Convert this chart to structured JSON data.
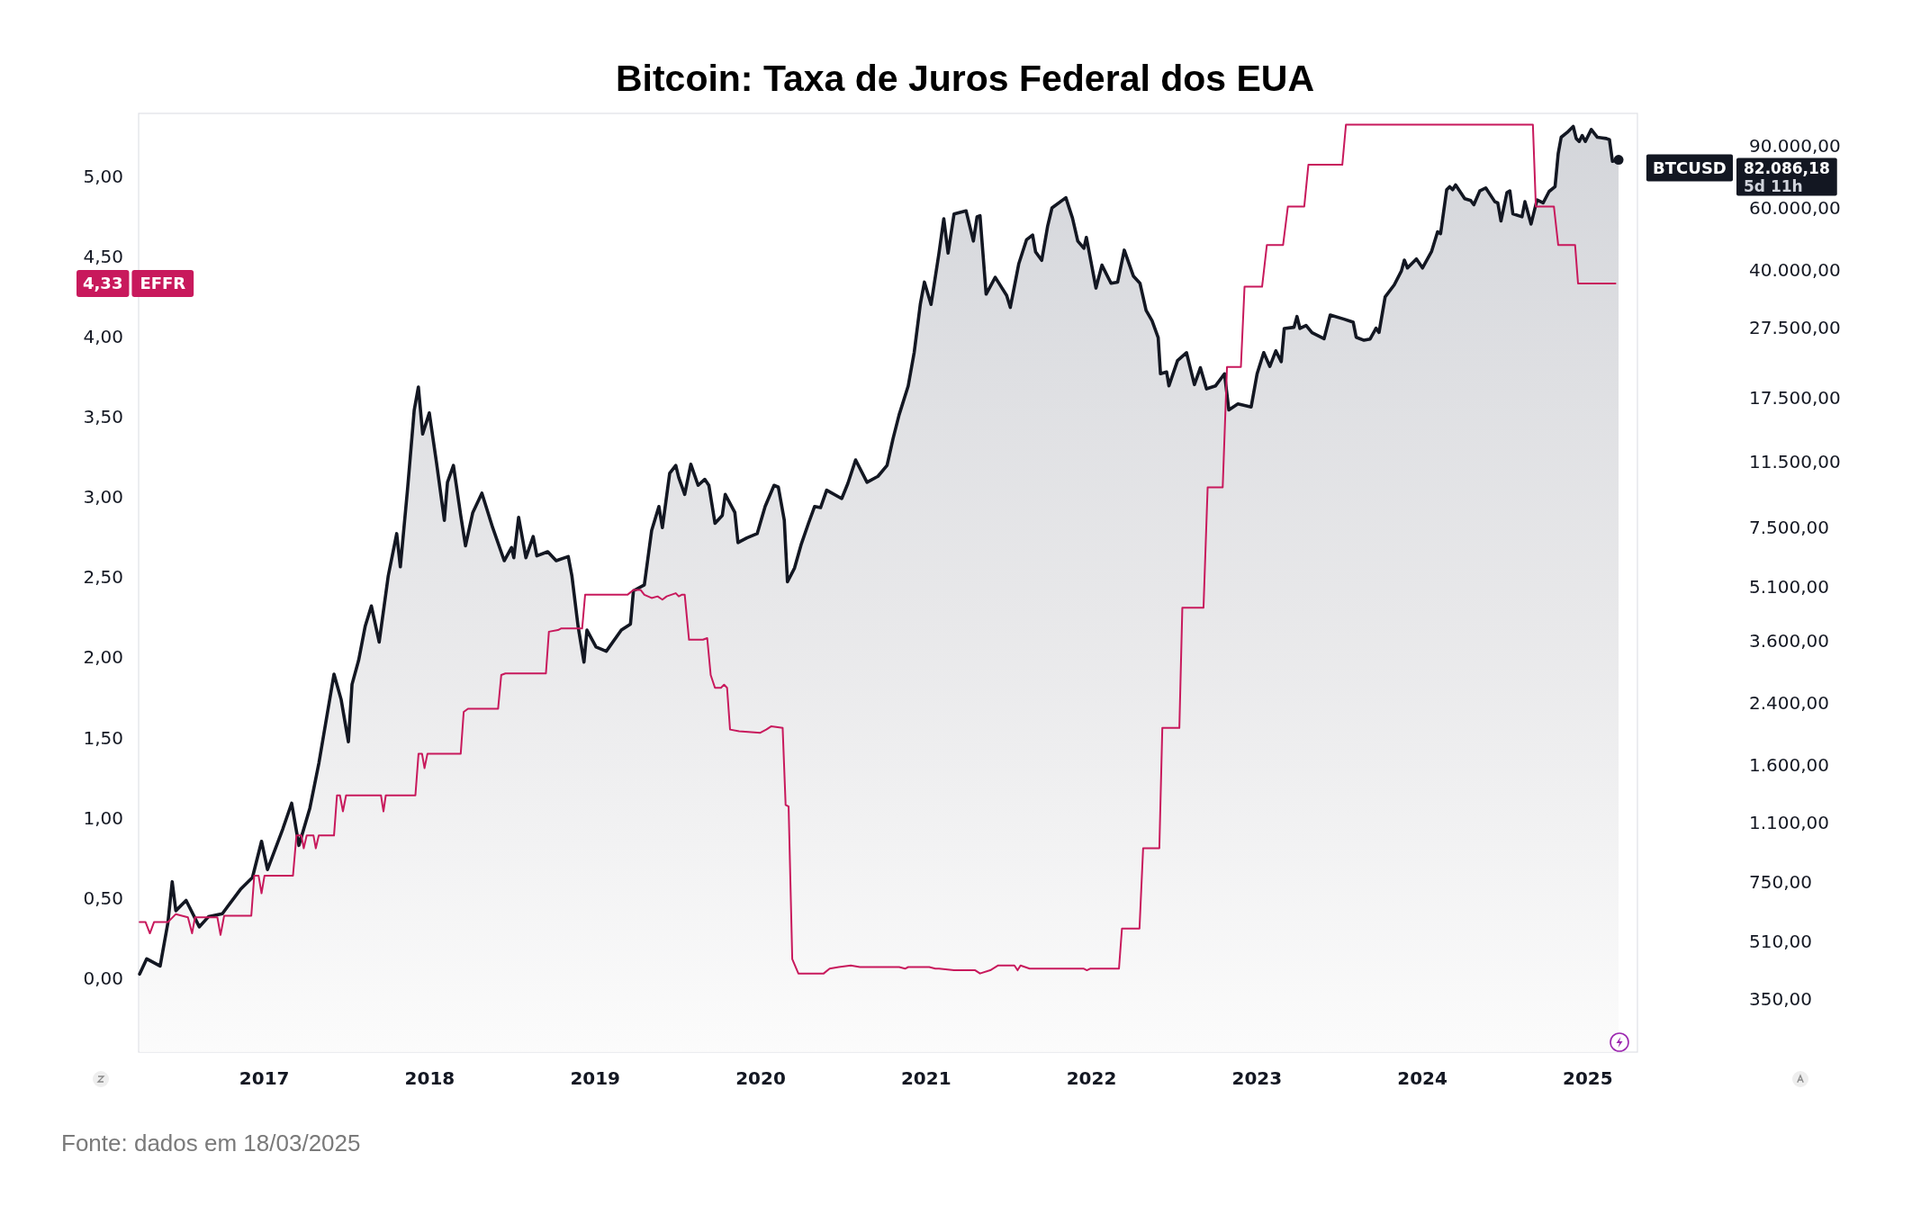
{
  "chart_data": {
    "type": "line",
    "title": "Bitcoin: Taxa de Juros Federal dos EUA",
    "annotations": [
      "4,33",
      "82.086,18",
      "5d 11h",
      "Fonte: dados em 18/03/2025"
    ],
    "xlim": [
      2016.24,
      2025.3
    ],
    "xticks": [
      2017,
      2018,
      2019,
      2020,
      2021,
      2022,
      2023,
      2024,
      2025
    ],
    "ylim": [
      -0.46,
      5.39
    ],
    "yticks": [
      {
        "value": 0,
        "label": "0,00"
      },
      {
        "value": 0.5,
        "label": "0,50"
      },
      {
        "value": 1,
        "label": "1,00"
      },
      {
        "value": 1.5,
        "label": "1,50"
      },
      {
        "value": 2,
        "label": "2,00"
      },
      {
        "value": 2.5,
        "label": "2,50"
      },
      {
        "value": 3,
        "label": "3,00"
      },
      {
        "value": 3.5,
        "label": "3,50"
      },
      {
        "value": 4,
        "label": "4,00"
      },
      {
        "value": 4.5,
        "label": "4,50"
      },
      {
        "value": 5,
        "label": "5,00"
      }
    ],
    "y2lim": [
      248,
      111000
    ],
    "y2ticks": [
      {
        "value": 350,
        "label": "350,00"
      },
      {
        "value": 510,
        "label": "510,00"
      },
      {
        "value": 750,
        "label": "750,00"
      },
      {
        "value": 1100,
        "label": "1.100,00"
      },
      {
        "value": 1600,
        "label": "1.600,00"
      },
      {
        "value": 2400,
        "label": "2.400,00"
      },
      {
        "value": 3600,
        "label": "3.600,00"
      },
      {
        "value": 5100,
        "label": "5.100,00"
      },
      {
        "value": 7500,
        "label": "7.500,00"
      },
      {
        "value": 11500,
        "label": "11.500,00"
      },
      {
        "value": 17500,
        "label": "17.500,00"
      },
      {
        "value": 27500,
        "label": "27.500,00"
      },
      {
        "value": 40000,
        "label": "40.000,00"
      },
      {
        "value": 60000,
        "label": "60.000,00"
      },
      {
        "value": 90000,
        "label": "90.000,00"
      }
    ],
    "log": "y2",
    "series": [
      {
        "name": "BTCUSD",
        "type": "area",
        "axis": "y2",
        "color": "#131722",
        "x": [
          2016.246,
          2016.289,
          2016.37,
          2016.417,
          2016.443,
          2016.465,
          2016.527,
          2016.607,
          2016.662,
          2016.746,
          2016.855,
          2016.928,
          2016.983,
          2017.019,
          2017.111,
          2017.165,
          2017.209,
          2017.275,
          2017.33,
          2017.421,
          2017.464,
          2017.508,
          2017.53,
          2017.57,
          2017.61,
          2017.647,
          2017.694,
          2017.749,
          2017.8,
          2017.822,
          2017.866,
          2017.906,
          2017.931,
          2017.957,
          2017.997,
          2018.041,
          2018.088,
          2018.107,
          2018.143,
          2018.187,
          2018.216,
          2018.26,
          2018.315,
          2018.38,
          2018.45,
          2018.494,
          2018.508,
          2018.537,
          2018.581,
          2018.625,
          2018.647,
          2018.713,
          2018.764,
          2018.837,
          2018.859,
          2018.896,
          2018.932,
          2018.95,
          2019.005,
          2019.067,
          2019.158,
          2019.213,
          2019.231,
          2019.297,
          2019.341,
          2019.385,
          2019.406,
          2019.45,
          2019.487,
          2019.505,
          2019.541,
          2019.578,
          2019.622,
          2019.662,
          2019.687,
          2019.724,
          2019.768,
          2019.786,
          2019.844,
          2019.863,
          2019.917,
          2019.979,
          2020.027,
          2020.081,
          2020.107,
          2020.143,
          2020.162,
          2020.205,
          2020.246,
          2020.289,
          2020.326,
          2020.362,
          2020.399,
          2020.49,
          2020.527,
          2020.574,
          2020.643,
          2020.709,
          2020.764,
          2020.8,
          2020.837,
          2020.892,
          2020.928,
          2020.965,
          2020.99,
          2021.03,
          2021.078,
          2021.107,
          2021.133,
          2021.169,
          2021.242,
          2021.286,
          2021.308,
          2021.326,
          2021.363,
          2021.418,
          2021.487,
          2021.509,
          2021.56,
          2021.607,
          2021.644,
          2021.662,
          2021.699,
          2021.735,
          2021.761,
          2021.845,
          2021.885,
          2021.917,
          2021.954,
          2021.969,
          2022.027,
          2022.063,
          2022.118,
          2022.158,
          2022.198,
          2022.253,
          2022.293,
          2022.33,
          2022.366,
          2022.403,
          2022.417,
          2022.454,
          2022.468,
          2022.52,
          2022.574,
          2022.622,
          2022.658,
          2022.695,
          2022.75,
          2022.804,
          2022.83,
          2022.885,
          2022.965,
          2023.001,
          2023.041,
          2023.078,
          2023.114,
          2023.147,
          2023.165,
          2023.224,
          2023.242,
          2023.26,
          2023.297,
          2023.333,
          2023.406,
          2023.443,
          2023.527,
          2023.582,
          2023.6,
          2023.647,
          2023.684,
          2023.72,
          2023.738,
          2023.775,
          2023.83,
          2023.873,
          2023.891,
          2023.91,
          2023.964,
          2024.001,
          2024.055,
          2024.092,
          2024.11,
          2024.147,
          2024.165,
          2024.183,
          2024.201,
          2024.256,
          2024.292,
          2024.311,
          2024.347,
          2024.383,
          2024.438,
          2024.456,
          2024.475,
          2024.511,
          2024.529,
          2024.547,
          2024.602,
          2024.62,
          2024.657,
          2024.693,
          2024.73,
          2024.766,
          2024.802,
          2024.821,
          2024.839,
          2024.875,
          2024.912,
          2024.93,
          2024.948,
          2024.966,
          2024.985,
          2025.021,
          2025.058,
          2025.112,
          2025.131,
          2025.149,
          2025.186
        ],
        "values": [
          412,
          455,
          434,
          575,
          751,
          622,
          665,
          560,
          598,
          610,
          714,
          772,
          977,
          813,
          1057,
          1251,
          951,
          1212,
          1627,
          2896,
          2457,
          1866,
          2710,
          3170,
          3964,
          4511,
          3566,
          5490,
          7222,
          5821,
          9694,
          16140,
          18740,
          13800,
          15830,
          11430,
          7875,
          10080,
          11250,
          8125,
          6675,
          8285,
          9393,
          7510,
          6055,
          6597,
          6175,
          8030,
          6175,
          7085,
          6248,
          6421,
          6055,
          6223,
          5490,
          3964,
          3133,
          3857,
          3455,
          3361,
          3857,
          4011,
          4977,
          5175,
          7365,
          8615,
          7510,
          10690,
          11250,
          10400,
          9320,
          11340,
          9886,
          10280,
          9886,
          7720,
          8125,
          9320,
          8285,
          6810,
          7026,
          7222,
          8615,
          9886,
          9770,
          7875,
          5278,
          5775,
          6755,
          7720,
          8615,
          8550,
          9580,
          9070,
          10000,
          11660,
          10080,
          10480,
          11250,
          13370,
          15640,
          18880,
          23430,
          32070,
          37070,
          32070,
          44750,
          55960,
          44750,
          57740,
          58890,
          48410,
          56620,
          57060,
          34280,
          38240,
          34000,
          31440,
          41700,
          48790,
          50350,
          45100,
          42690,
          53390,
          60050,
          64190,
          56180,
          48410,
          46170,
          49570,
          35650,
          41380,
          36780,
          37070,
          45630,
          38550,
          36780,
          30830,
          28840,
          25840,
          20420,
          20660,
          18880,
          22260,
          23430,
          19030,
          21240,
          18510,
          18880,
          20420,
          16140,
          16780,
          16460,
          20420,
          23430,
          21410,
          23710,
          22090,
          27410,
          27630,
          29640,
          27410,
          27950,
          26660,
          25640,
          29930,
          29120,
          28550,
          25890,
          25390,
          25590,
          27460,
          26720,
          33660,
          36400,
          39830,
          42750,
          40630,
          43080,
          40630,
          45150,
          51390,
          50790,
          67580,
          68920,
          67580,
          69730,
          63740,
          63000,
          61290,
          67060,
          68390,
          62510,
          62020,
          55140,
          66280,
          67060,
          57800,
          56680,
          62510,
          54070,
          63240,
          62020,
          66800,
          68920,
          85510,
          95040,
          98060,
          102000,
          94300,
          92470,
          96160,
          92470,
          100000,
          95040,
          94300,
          93560,
          81260,
          82086.18
        ]
      },
      {
        "name": "EFFR",
        "type": "line",
        "axis": "y",
        "color": "#c8195c",
        "x": [
          2016.246,
          2016.282,
          2016.308,
          2016.333,
          2016.417,
          2016.465,
          2016.538,
          2016.563,
          2016.581,
          2016.716,
          2016.735,
          2016.757,
          2016.921,
          2016.939,
          2016.965,
          2016.983,
          2017.001,
          2017.173,
          2017.194,
          2017.224,
          2017.238,
          2017.256,
          2017.297,
          2017.311,
          2017.329,
          2017.421,
          2017.439,
          2017.457,
          2017.475,
          2017.494,
          2017.705,
          2017.72,
          2017.734,
          2017.913,
          2017.932,
          2017.953,
          2017.968,
          2017.986,
          2018.187,
          2018.205,
          2018.231,
          2018.413,
          2018.432,
          2018.457,
          2018.702,
          2018.72,
          2018.775,
          2018.793,
          2018.921,
          2018.939,
          2019.195,
          2019.231,
          2019.275,
          2019.297,
          2019.341,
          2019.377,
          2019.406,
          2019.432,
          2019.487,
          2019.505,
          2019.523,
          2019.541,
          2019.567,
          2019.651,
          2019.677,
          2019.698,
          2019.724,
          2019.76,
          2019.779,
          2019.797,
          2019.815,
          2019.87,
          2019.998,
          2020.034,
          2020.063,
          2020.133,
          2020.151,
          2020.169,
          2020.191,
          2020.228,
          2020.381,
          2020.417,
          2020.472,
          2020.545,
          2020.6,
          2020.837,
          2020.873,
          2020.892,
          2021.019,
          2021.056,
          2021.078,
          2021.169,
          2021.297,
          2021.326,
          2021.388,
          2021.436,
          2021.534,
          2021.553,
          2021.571,
          2021.626,
          2021.954,
          2021.972,
          2021.991,
          2022.166,
          2022.184,
          2022.29,
          2022.312,
          2022.41,
          2022.428,
          2022.531,
          2022.549,
          2022.677,
          2022.702,
          2022.793,
          2022.819,
          2022.903,
          2022.925,
          2023.031,
          2023.06,
          2023.158,
          2023.187,
          2023.286,
          2023.311,
          2023.516,
          2023.538,
          2024.668,
          2024.686,
          2024.795,
          2024.821,
          2024.923,
          2024.941,
          2025.167
        ],
        "values": [
          0.35,
          0.35,
          0.28,
          0.35,
          0.35,
          0.4,
          0.38,
          0.28,
          0.38,
          0.38,
          0.27,
          0.39,
          0.39,
          0.64,
          0.64,
          0.53,
          0.64,
          0.64,
          0.89,
          0.89,
          0.81,
          0.89,
          0.89,
          0.81,
          0.89,
          0.89,
          1.14,
          1.14,
          1.04,
          1.14,
          1.14,
          1.04,
          1.14,
          1.14,
          1.4,
          1.4,
          1.31,
          1.4,
          1.4,
          1.66,
          1.68,
          1.68,
          1.89,
          1.9,
          1.9,
          2.16,
          2.17,
          2.18,
          2.18,
          2.39,
          2.39,
          2.42,
          2.42,
          2.39,
          2.37,
          2.38,
          2.36,
          2.38,
          2.4,
          2.38,
          2.39,
          2.39,
          2.11,
          2.11,
          2.12,
          1.89,
          1.81,
          1.81,
          1.83,
          1.81,
          1.55,
          1.54,
          1.53,
          1.55,
          1.57,
          1.56,
          1.08,
          1.07,
          0.12,
          0.03,
          0.03,
          0.06,
          0.07,
          0.08,
          0.07,
          0.07,
          0.06,
          0.07,
          0.07,
          0.06,
          0.06,
          0.05,
          0.05,
          0.03,
          0.05,
          0.08,
          0.08,
          0.05,
          0.08,
          0.06,
          0.06,
          0.05,
          0.06,
          0.06,
          0.31,
          0.31,
          0.81,
          0.81,
          1.56,
          1.56,
          2.31,
          2.31,
          3.06,
          3.06,
          3.81,
          3.81,
          4.31,
          4.31,
          4.57,
          4.57,
          4.81,
          4.81,
          5.07,
          5.07,
          5.32,
          5.32,
          4.81,
          4.81,
          4.57,
          4.57,
          4.33,
          4.33
        ]
      }
    ]
  }
}
